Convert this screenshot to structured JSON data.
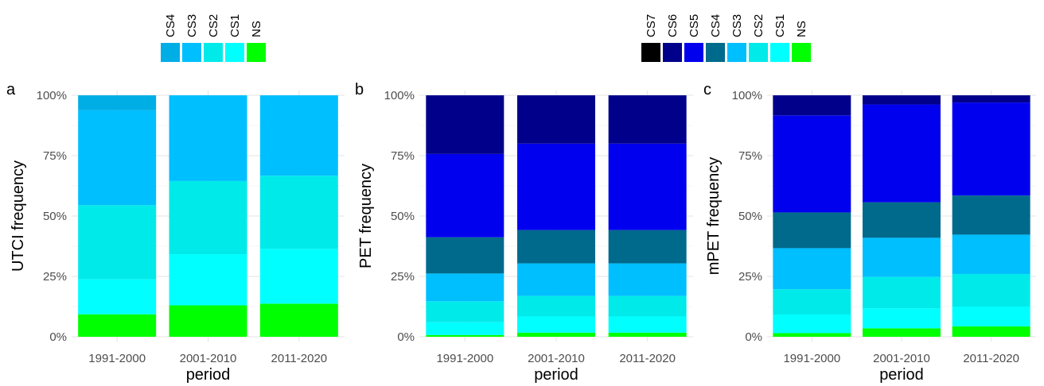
{
  "colors": {
    "NS": "#00ff00",
    "CS1": "#00ffff",
    "CS2": "#00eaea",
    "CS3": "#00bfff",
    "CS4_utci": "#00aee6",
    "CS4": "#006a8c",
    "CS5": "#0000ee",
    "CS6": "#00008b",
    "CS7": "#000000"
  },
  "legends": [
    {
      "keys": [
        "CS4",
        "CS3",
        "CS2",
        "CS1",
        "NS"
      ],
      "colors": [
        "#00aee6",
        "#00bfff",
        "#00eaea",
        "#00ffff",
        "#00ff00"
      ]
    },
    {
      "keys": [
        "CS7",
        "CS6",
        "CS5",
        "CS4",
        "CS3",
        "CS2",
        "CS1",
        "NS"
      ],
      "colors": [
        "#000000",
        "#00008b",
        "#0000ee",
        "#006a8c",
        "#00bfff",
        "#00eaea",
        "#00ffff",
        "#00ff00"
      ]
    }
  ],
  "chart_data": [
    {
      "type": "bar",
      "stacked": true,
      "panel": "a",
      "title": "",
      "xlabel": "period",
      "ylabel": "UTCI frequency",
      "ylim": [
        0,
        1
      ],
      "yticks": [
        "0%",
        "25%",
        "50%",
        "75%",
        "100%"
      ],
      "categories": [
        "1991-2000",
        "2001-2010",
        "2011-2020"
      ],
      "series": [
        {
          "name": "NS",
          "color": "#00ff00",
          "values": [
            0.093,
            0.13,
            0.137
          ]
        },
        {
          "name": "CS1",
          "color": "#00ffff",
          "values": [
            0.145,
            0.212,
            0.227
          ]
        },
        {
          "name": "CS2",
          "color": "#00eaea",
          "values": [
            0.307,
            0.303,
            0.303
          ]
        },
        {
          "name": "CS3",
          "color": "#00bfff",
          "values": [
            0.393,
            0.355,
            0.333
          ]
        },
        {
          "name": "CS4",
          "color": "#00aee6",
          "values": [
            0.062,
            0.0,
            0.0
          ]
        }
      ]
    },
    {
      "type": "bar",
      "stacked": true,
      "panel": "b",
      "title": "",
      "xlabel": "period",
      "ylabel": "PET frequency",
      "ylim": [
        0,
        1
      ],
      "yticks": [
        "0%",
        "25%",
        "50%",
        "75%",
        "100%"
      ],
      "categories": [
        "1991-2000",
        "2001-2010",
        "2011-2020"
      ],
      "series": [
        {
          "name": "NS",
          "color": "#00ff00",
          "values": [
            0.007,
            0.017,
            0.017
          ]
        },
        {
          "name": "CS1",
          "color": "#00ffff",
          "values": [
            0.053,
            0.067,
            0.067
          ]
        },
        {
          "name": "CS2",
          "color": "#00eaea",
          "values": [
            0.087,
            0.085,
            0.085
          ]
        },
        {
          "name": "CS3",
          "color": "#00bfff",
          "values": [
            0.115,
            0.135,
            0.135
          ]
        },
        {
          "name": "CS4",
          "color": "#006a8c",
          "values": [
            0.15,
            0.138,
            0.138
          ]
        },
        {
          "name": "CS5",
          "color": "#0000ee",
          "values": [
            0.345,
            0.358,
            0.358
          ]
        },
        {
          "name": "CS6",
          "color": "#00008b",
          "values": [
            0.243,
            0.2,
            0.2
          ]
        },
        {
          "name": "CS7",
          "color": "#000000",
          "values": [
            0.0,
            0.0,
            0.0
          ]
        }
      ]
    },
    {
      "type": "bar",
      "stacked": true,
      "panel": "c",
      "title": "",
      "xlabel": "period",
      "ylabel": "mPET frequency",
      "ylim": [
        0,
        1
      ],
      "yticks": [
        "0%",
        "25%",
        "50%",
        "75%",
        "100%"
      ],
      "categories": [
        "1991-2000",
        "2001-2010",
        "2011-2020"
      ],
      "series": [
        {
          "name": "NS",
          "color": "#00ff00",
          "values": [
            0.015,
            0.035,
            0.043
          ]
        },
        {
          "name": "CS1",
          "color": "#00ffff",
          "values": [
            0.077,
            0.083,
            0.082
          ]
        },
        {
          "name": "CS2",
          "color": "#00eaea",
          "values": [
            0.105,
            0.13,
            0.135
          ]
        },
        {
          "name": "CS3",
          "color": "#00bfff",
          "values": [
            0.17,
            0.162,
            0.163
          ]
        },
        {
          "name": "CS4",
          "color": "#006a8c",
          "values": [
            0.148,
            0.147,
            0.162
          ]
        },
        {
          "name": "CS5",
          "color": "#0000ee",
          "values": [
            0.402,
            0.405,
            0.385
          ]
        },
        {
          "name": "CS6",
          "color": "#00008b",
          "values": [
            0.083,
            0.038,
            0.03
          ]
        },
        {
          "name": "CS7",
          "color": "#000000",
          "values": [
            0.0,
            0.0,
            0.0
          ]
        }
      ]
    }
  ]
}
